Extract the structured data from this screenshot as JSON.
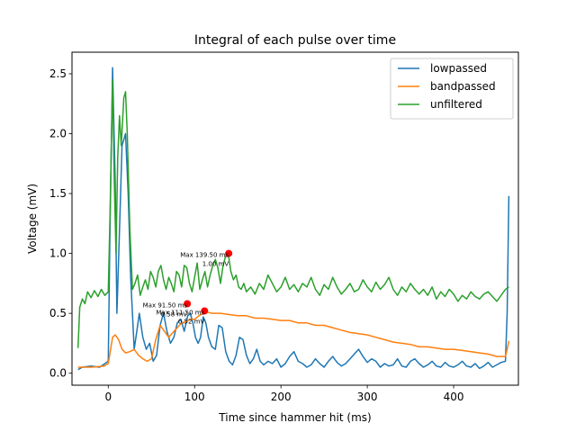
{
  "chart_data": {
    "type": "line",
    "title": "Integral of each pulse over time",
    "xlabel": "Time since hammer hit (ms)",
    "ylabel": "Voltage (mV)",
    "xlim": [
      -42,
      475
    ],
    "ylim": [
      -0.1,
      2.68
    ],
    "xticks": [
      0,
      100,
      200,
      300,
      400
    ],
    "yticks": [
      0.0,
      0.5,
      1.0,
      1.5,
      2.0,
      2.5
    ],
    "ytick_labels": [
      "0.0",
      "0.5",
      "1.0",
      "1.5",
      "2.0",
      "2.5"
    ],
    "grid": false,
    "legend_position": "top-right",
    "series": [
      {
        "name": "lowpassed",
        "color": "#1f77b4",
        "x": [
          -35,
          -30,
          -20,
          -10,
          0,
          2,
          5,
          8,
          10,
          13,
          16,
          20,
          23,
          26,
          30,
          33,
          36,
          40,
          44,
          48,
          52,
          56,
          60,
          64,
          68,
          72,
          76,
          80,
          84,
          88,
          92,
          95,
          98,
          101,
          104,
          107,
          110,
          113,
          116,
          120,
          124,
          128,
          132,
          136,
          140,
          144,
          148,
          152,
          156,
          160,
          164,
          168,
          172,
          176,
          180,
          185,
          190,
          195,
          200,
          205,
          210,
          215,
          220,
          225,
          230,
          235,
          240,
          245,
          250,
          255,
          260,
          265,
          270,
          275,
          280,
          285,
          290,
          295,
          300,
          305,
          310,
          315,
          320,
          325,
          330,
          335,
          340,
          345,
          350,
          355,
          360,
          365,
          370,
          375,
          380,
          385,
          390,
          395,
          400,
          405,
          410,
          415,
          420,
          425,
          430,
          435,
          440,
          445,
          450,
          455,
          460,
          462,
          464
        ],
        "y": [
          0.03,
          0.05,
          0.06,
          0.05,
          0.1,
          1.2,
          2.55,
          1.6,
          0.5,
          1.2,
          1.9,
          2.0,
          1.5,
          0.8,
          0.2,
          0.35,
          0.5,
          0.3,
          0.2,
          0.25,
          0.1,
          0.15,
          0.4,
          0.5,
          0.35,
          0.25,
          0.3,
          0.42,
          0.45,
          0.35,
          0.48,
          0.5,
          0.42,
          0.3,
          0.25,
          0.3,
          0.47,
          0.42,
          0.3,
          0.22,
          0.2,
          0.4,
          0.38,
          0.18,
          0.1,
          0.07,
          0.15,
          0.3,
          0.28,
          0.15,
          0.08,
          0.12,
          0.2,
          0.1,
          0.07,
          0.1,
          0.08,
          0.12,
          0.05,
          0.08,
          0.14,
          0.18,
          0.1,
          0.08,
          0.05,
          0.07,
          0.12,
          0.08,
          0.05,
          0.1,
          0.14,
          0.09,
          0.06,
          0.08,
          0.12,
          0.16,
          0.2,
          0.14,
          0.09,
          0.12,
          0.1,
          0.05,
          0.08,
          0.06,
          0.07,
          0.12,
          0.06,
          0.05,
          0.1,
          0.12,
          0.08,
          0.05,
          0.07,
          0.1,
          0.06,
          0.05,
          0.09,
          0.06,
          0.05,
          0.07,
          0.1,
          0.06,
          0.05,
          0.08,
          0.04,
          0.06,
          0.09,
          0.05,
          0.07,
          0.09,
          0.1,
          0.5,
          1.48
        ]
      },
      {
        "name": "bandpassed",
        "color": "#ff7f0e",
        "x": [
          -35,
          -20,
          -5,
          0,
          5,
          8,
          12,
          16,
          20,
          25,
          30,
          35,
          40,
          45,
          50,
          55,
          60,
          65,
          70,
          75,
          80,
          85,
          90,
          95,
          100,
          105,
          110,
          115,
          120,
          130,
          140,
          150,
          160,
          170,
          180,
          190,
          200,
          210,
          220,
          230,
          240,
          250,
          260,
          270,
          280,
          290,
          300,
          310,
          320,
          330,
          340,
          350,
          360,
          370,
          380,
          390,
          400,
          410,
          420,
          430,
          440,
          450,
          460,
          462,
          464
        ],
        "y": [
          0.05,
          0.05,
          0.06,
          0.08,
          0.3,
          0.32,
          0.28,
          0.2,
          0.17,
          0.18,
          0.2,
          0.15,
          0.12,
          0.1,
          0.12,
          0.28,
          0.4,
          0.35,
          0.3,
          0.34,
          0.38,
          0.42,
          0.43,
          0.45,
          0.45,
          0.48,
          0.5,
          0.51,
          0.5,
          0.5,
          0.49,
          0.48,
          0.48,
          0.46,
          0.46,
          0.45,
          0.44,
          0.44,
          0.42,
          0.42,
          0.4,
          0.4,
          0.38,
          0.36,
          0.34,
          0.33,
          0.32,
          0.3,
          0.28,
          0.26,
          0.25,
          0.24,
          0.22,
          0.22,
          0.21,
          0.2,
          0.2,
          0.19,
          0.18,
          0.17,
          0.16,
          0.14,
          0.14,
          0.2,
          0.27
        ]
      },
      {
        "name": "unfiltered",
        "color": "#2ca02c",
        "x": [
          -35,
          -33,
          -30,
          -27,
          -24,
          -20,
          -16,
          -12,
          -8,
          -4,
          0,
          2,
          5,
          7,
          9,
          11,
          13,
          15,
          18,
          20,
          22,
          25,
          28,
          31,
          34,
          37,
          40,
          43,
          46,
          49,
          52,
          55,
          58,
          61,
          64,
          67,
          70,
          73,
          76,
          79,
          82,
          85,
          88,
          91,
          94,
          97,
          100,
          103,
          106,
          109,
          112,
          115,
          118,
          121,
          124,
          127,
          130,
          133,
          136,
          139,
          142,
          145,
          148,
          151,
          154,
          157,
          160,
          165,
          170,
          175,
          180,
          185,
          190,
          195,
          200,
          205,
          210,
          215,
          220,
          225,
          230,
          235,
          240,
          245,
          250,
          255,
          260,
          265,
          270,
          275,
          280,
          285,
          290,
          295,
          300,
          305,
          310,
          315,
          320,
          325,
          330,
          335,
          340,
          345,
          350,
          355,
          360,
          365,
          370,
          375,
          380,
          385,
          390,
          395,
          400,
          405,
          410,
          415,
          420,
          425,
          430,
          435,
          440,
          445,
          450,
          455,
          460,
          464
        ],
        "y": [
          0.21,
          0.55,
          0.62,
          0.58,
          0.68,
          0.63,
          0.69,
          0.64,
          0.7,
          0.65,
          0.68,
          1.3,
          2.45,
          1.6,
          1.0,
          1.8,
          2.15,
          1.9,
          2.3,
          2.35,
          2.0,
          1.2,
          0.7,
          0.75,
          0.82,
          0.65,
          0.72,
          0.78,
          0.7,
          0.85,
          0.8,
          0.72,
          0.85,
          0.9,
          0.78,
          0.7,
          0.8,
          0.75,
          0.68,
          0.85,
          0.82,
          0.72,
          0.9,
          0.88,
          0.75,
          0.68,
          0.8,
          0.92,
          0.7,
          0.78,
          0.85,
          0.72,
          0.82,
          0.9,
          0.95,
          0.88,
          0.75,
          0.9,
          0.98,
          1.0,
          0.85,
          0.78,
          0.82,
          0.72,
          0.7,
          0.75,
          0.68,
          0.72,
          0.66,
          0.75,
          0.7,
          0.82,
          0.75,
          0.68,
          0.72,
          0.8,
          0.7,
          0.74,
          0.68,
          0.75,
          0.72,
          0.8,
          0.7,
          0.65,
          0.74,
          0.7,
          0.8,
          0.72,
          0.66,
          0.7,
          0.75,
          0.68,
          0.7,
          0.78,
          0.72,
          0.68,
          0.76,
          0.7,
          0.74,
          0.8,
          0.7,
          0.65,
          0.72,
          0.68,
          0.75,
          0.7,
          0.66,
          0.7,
          0.65,
          0.72,
          0.62,
          0.68,
          0.64,
          0.7,
          0.66,
          0.6,
          0.65,
          0.62,
          0.68,
          0.64,
          0.62,
          0.66,
          0.68,
          0.64,
          0.6,
          0.65,
          0.7,
          0.72
        ]
      }
    ],
    "annotations": [
      {
        "x": 139.5,
        "y": 1.0,
        "color": "#ff0000",
        "lines": [
          "Max 139.50 ms",
          "1.00 mV"
        ]
      },
      {
        "x": 91.5,
        "y": 0.58,
        "color": "#ff0000",
        "lines": [
          "Max 91.50 ms",
          "0.58 mV"
        ]
      },
      {
        "x": 111.5,
        "y": 0.52,
        "color": "#ff0000",
        "lines": [
          "Max 111.50 ms",
          "0.52 mV"
        ]
      }
    ]
  }
}
